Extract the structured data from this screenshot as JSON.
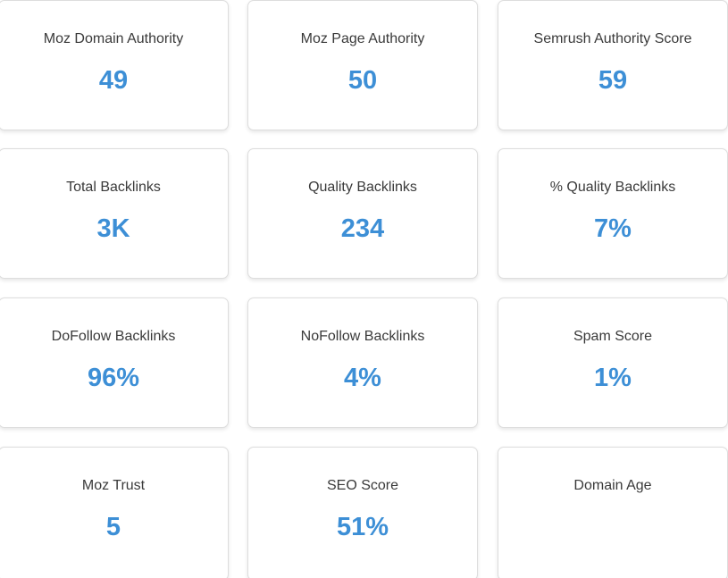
{
  "accent_color": "#3d8fd6",
  "cards": [
    {
      "label": "Moz Domain Authority",
      "value": "49"
    },
    {
      "label": "Moz Page Authority",
      "value": "50"
    },
    {
      "label": "Semrush Authority Score",
      "value": "59"
    },
    {
      "label": "Total Backlinks",
      "value": "3K"
    },
    {
      "label": "Quality Backlinks",
      "value": "234"
    },
    {
      "label": "% Quality Backlinks",
      "value": "7%"
    },
    {
      "label": "DoFollow Backlinks",
      "value": "96%"
    },
    {
      "label": "NoFollow Backlinks",
      "value": "4%"
    },
    {
      "label": "Spam Score",
      "value": "1%"
    },
    {
      "label": "Moz Trust",
      "value": "5"
    },
    {
      "label": "SEO Score",
      "value": "51%"
    },
    {
      "label": "Domain Age",
      "value": ""
    }
  ]
}
